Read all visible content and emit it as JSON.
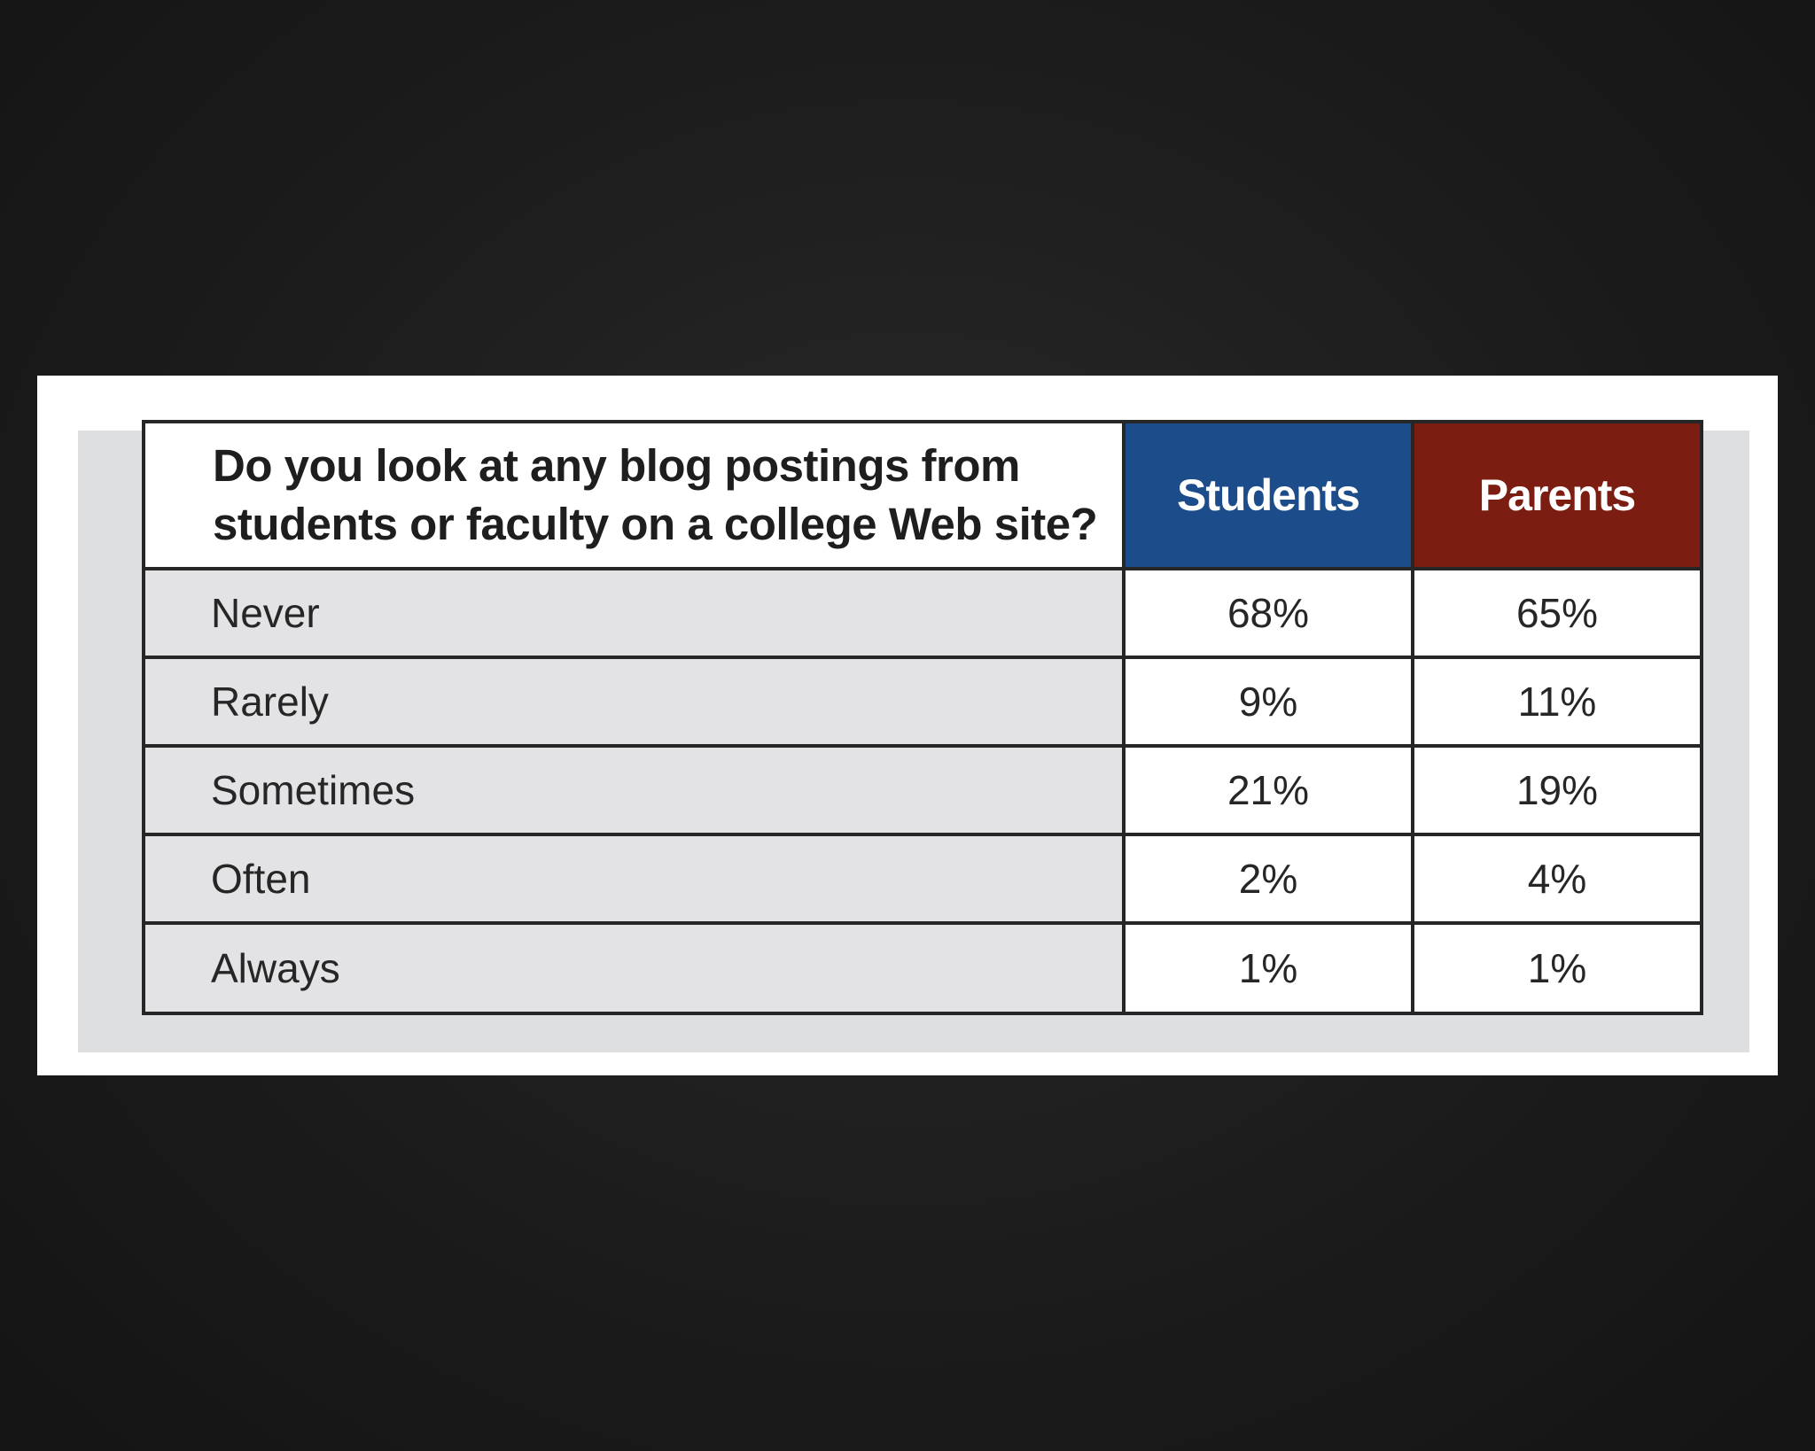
{
  "chart_data": {
    "type": "table",
    "title": "Do you look at any blog postings from students or faculty on a college Web site?",
    "columns": [
      "Students",
      "Parents"
    ],
    "rows": [
      {
        "label": "Never",
        "students": "68%",
        "parents": "65%"
      },
      {
        "label": "Rarely",
        "students": "9%",
        "parents": "11%"
      },
      {
        "label": "Sometimes",
        "students": "21%",
        "parents": "19%"
      },
      {
        "label": "Often",
        "students": "2%",
        "parents": "4%"
      },
      {
        "label": "Always",
        "students": "1%",
        "parents": "1%"
      }
    ],
    "colors": {
      "students_header": "#1d4c8a",
      "parents_header": "#7c1d12",
      "label_cell": "#e3e3e5",
      "background": "#1c1c1c"
    }
  }
}
